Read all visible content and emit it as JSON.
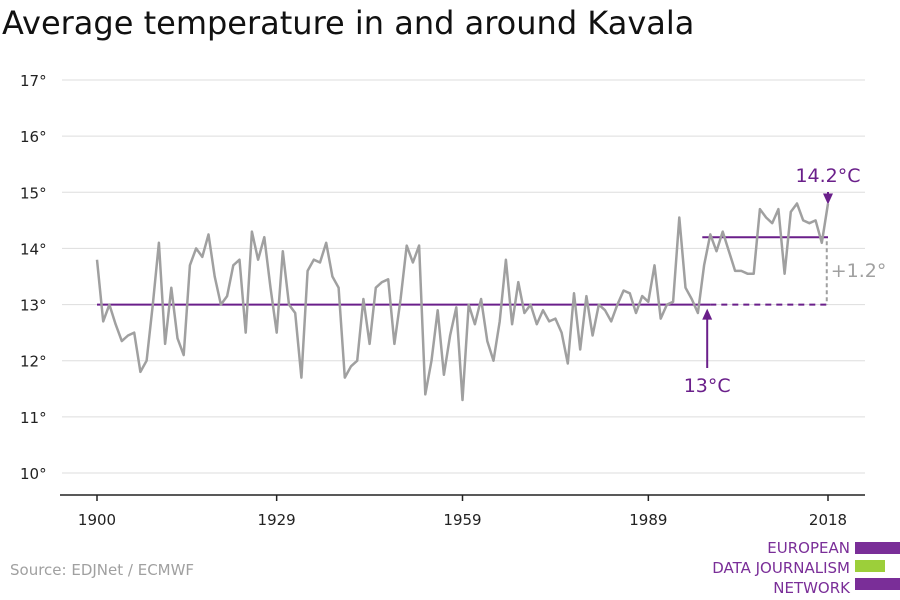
{
  "title": "Average temperature in and around Kavala",
  "source": "Source: EDJNet / ECMWF",
  "logo": {
    "lines": [
      "EUROPEAN",
      "DATA JOURNALISM",
      "NETWORK"
    ],
    "colors": {
      "purple": "#7a2e98",
      "green": "#9ccf3a"
    }
  },
  "colors": {
    "series": "#a0a0a0",
    "baseline": "#6a1f8a",
    "recent_avg": "#6a1f8a",
    "annotation_purple": "#6a1f8a",
    "annotation_grey": "#a0a0a0",
    "grid": "#dddddd",
    "axis": "#222222"
  },
  "chart_data": {
    "type": "line",
    "title": "Average temperature in and around Kavala",
    "xlim": [
      1900,
      2018
    ],
    "ylim": [
      10,
      17
    ],
    "x_ticks": [
      1900,
      1929,
      1959,
      1989,
      2018
    ],
    "y_ticks": [
      {
        "value": 10,
        "label": "10°"
      },
      {
        "value": 11,
        "label": "11°"
      },
      {
        "value": 12,
        "label": "12°"
      },
      {
        "value": 13,
        "label": "13°"
      },
      {
        "value": 14,
        "label": "14°"
      },
      {
        "value": 15,
        "label": "15°"
      },
      {
        "value": 16,
        "label": "16°"
      },
      {
        "value": 17,
        "label": "17°"
      }
    ],
    "grid": true,
    "x": [
      1900,
      1901,
      1902,
      1903,
      1904,
      1905,
      1906,
      1907,
      1908,
      1909,
      1910,
      1911,
      1912,
      1913,
      1914,
      1915,
      1916,
      1917,
      1918,
      1919,
      1920,
      1921,
      1922,
      1923,
      1924,
      1925,
      1926,
      1927,
      1928,
      1929,
      1930,
      1931,
      1932,
      1933,
      1934,
      1935,
      1936,
      1937,
      1938,
      1939,
      1940,
      1941,
      1942,
      1943,
      1944,
      1945,
      1946,
      1947,
      1948,
      1949,
      1950,
      1951,
      1952,
      1953,
      1954,
      1955,
      1956,
      1957,
      1958,
      1959,
      1960,
      1961,
      1962,
      1963,
      1964,
      1965,
      1966,
      1967,
      1968,
      1969,
      1970,
      1971,
      1972,
      1973,
      1974,
      1975,
      1976,
      1977,
      1978,
      1979,
      1980,
      1981,
      1982,
      1983,
      1984,
      1985,
      1986,
      1987,
      1988,
      1989,
      1990,
      1991,
      1992,
      1993,
      1994,
      1995,
      1996,
      1997,
      1998,
      1999,
      2000,
      2001,
      2002,
      2003,
      2004,
      2005,
      2006,
      2007,
      2008,
      2009,
      2010,
      2011,
      2012,
      2013,
      2014,
      2015,
      2016,
      2017,
      2018
    ],
    "series": [
      {
        "values": [
          13.8,
          12.7,
          13.0,
          12.65,
          12.35,
          12.45,
          12.5,
          11.8,
          12.0,
          13.0,
          14.1,
          12.3,
          13.3,
          12.4,
          12.1,
          13.7,
          14.0,
          13.85,
          14.25,
          13.5,
          13.0,
          13.15,
          13.7,
          13.8,
          12.5,
          14.3,
          13.8,
          14.2,
          13.3,
          12.5,
          13.95,
          13.0,
          12.85,
          11.7,
          13.6,
          13.8,
          13.75,
          14.1,
          13.5,
          13.3,
          11.7,
          11.9,
          12.0,
          13.1,
          12.3,
          13.3,
          13.4,
          13.45,
          12.3,
          13.1,
          14.05,
          13.75,
          14.05,
          11.4,
          12.0,
          12.9,
          11.75,
          12.45,
          12.95,
          11.3,
          13.0,
          12.65,
          13.1,
          12.35,
          12.0,
          12.7,
          13.8,
          12.65,
          13.4,
          12.85,
          13.0,
          12.65,
          12.9,
          12.7,
          12.75,
          12.5,
          11.95,
          13.2,
          12.2,
          13.15,
          12.45,
          13.0,
          12.9,
          12.7,
          13.0,
          13.25,
          13.2,
          12.85,
          13.15,
          13.05,
          13.7,
          12.75,
          13.0,
          13.05,
          14.55,
          13.3,
          13.1,
          12.85,
          13.7,
          14.25,
          13.95,
          14.3,
          13.95,
          13.6,
          13.6,
          13.55,
          13.55,
          14.7,
          14.55,
          14.45,
          14.7,
          13.55,
          14.65,
          14.8,
          14.5,
          14.45,
          14.5,
          14.1,
          14.8
        ]
      }
    ],
    "reference_lines": [
      {
        "label": "13°C",
        "value": 13.0,
        "x_start": 1900,
        "x_solid_end": 1999,
        "x_dashed_end": 2018
      },
      {
        "label": "14.2°C",
        "value": 14.2,
        "x_start": 1999,
        "x_end": 2018
      }
    ],
    "difference_label": "+1.2°"
  }
}
